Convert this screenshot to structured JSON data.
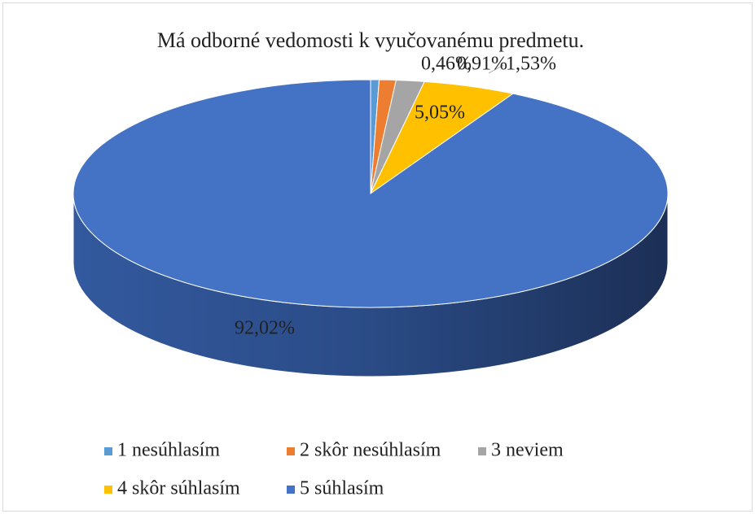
{
  "chart_data": {
    "type": "pie",
    "title": "Má odborné vedomosti k vyučovanému predmetu.",
    "categories": [
      "1 nesúhlasím",
      "2 skôr nesúhlasím",
      "3 neviem",
      "4 skôr súhlasím",
      "5 súhlasím"
    ],
    "values": [
      0.46,
      0.91,
      1.53,
      5.05,
      92.02
    ],
    "value_labels": [
      "0,46%",
      "0,91%",
      "1,53%",
      "5,05%",
      "92,02%"
    ],
    "colors": [
      "#5b9bd5",
      "#ed7d31",
      "#a5a5a5",
      "#ffc000",
      "#4472c4"
    ],
    "legend": "bottom"
  }
}
